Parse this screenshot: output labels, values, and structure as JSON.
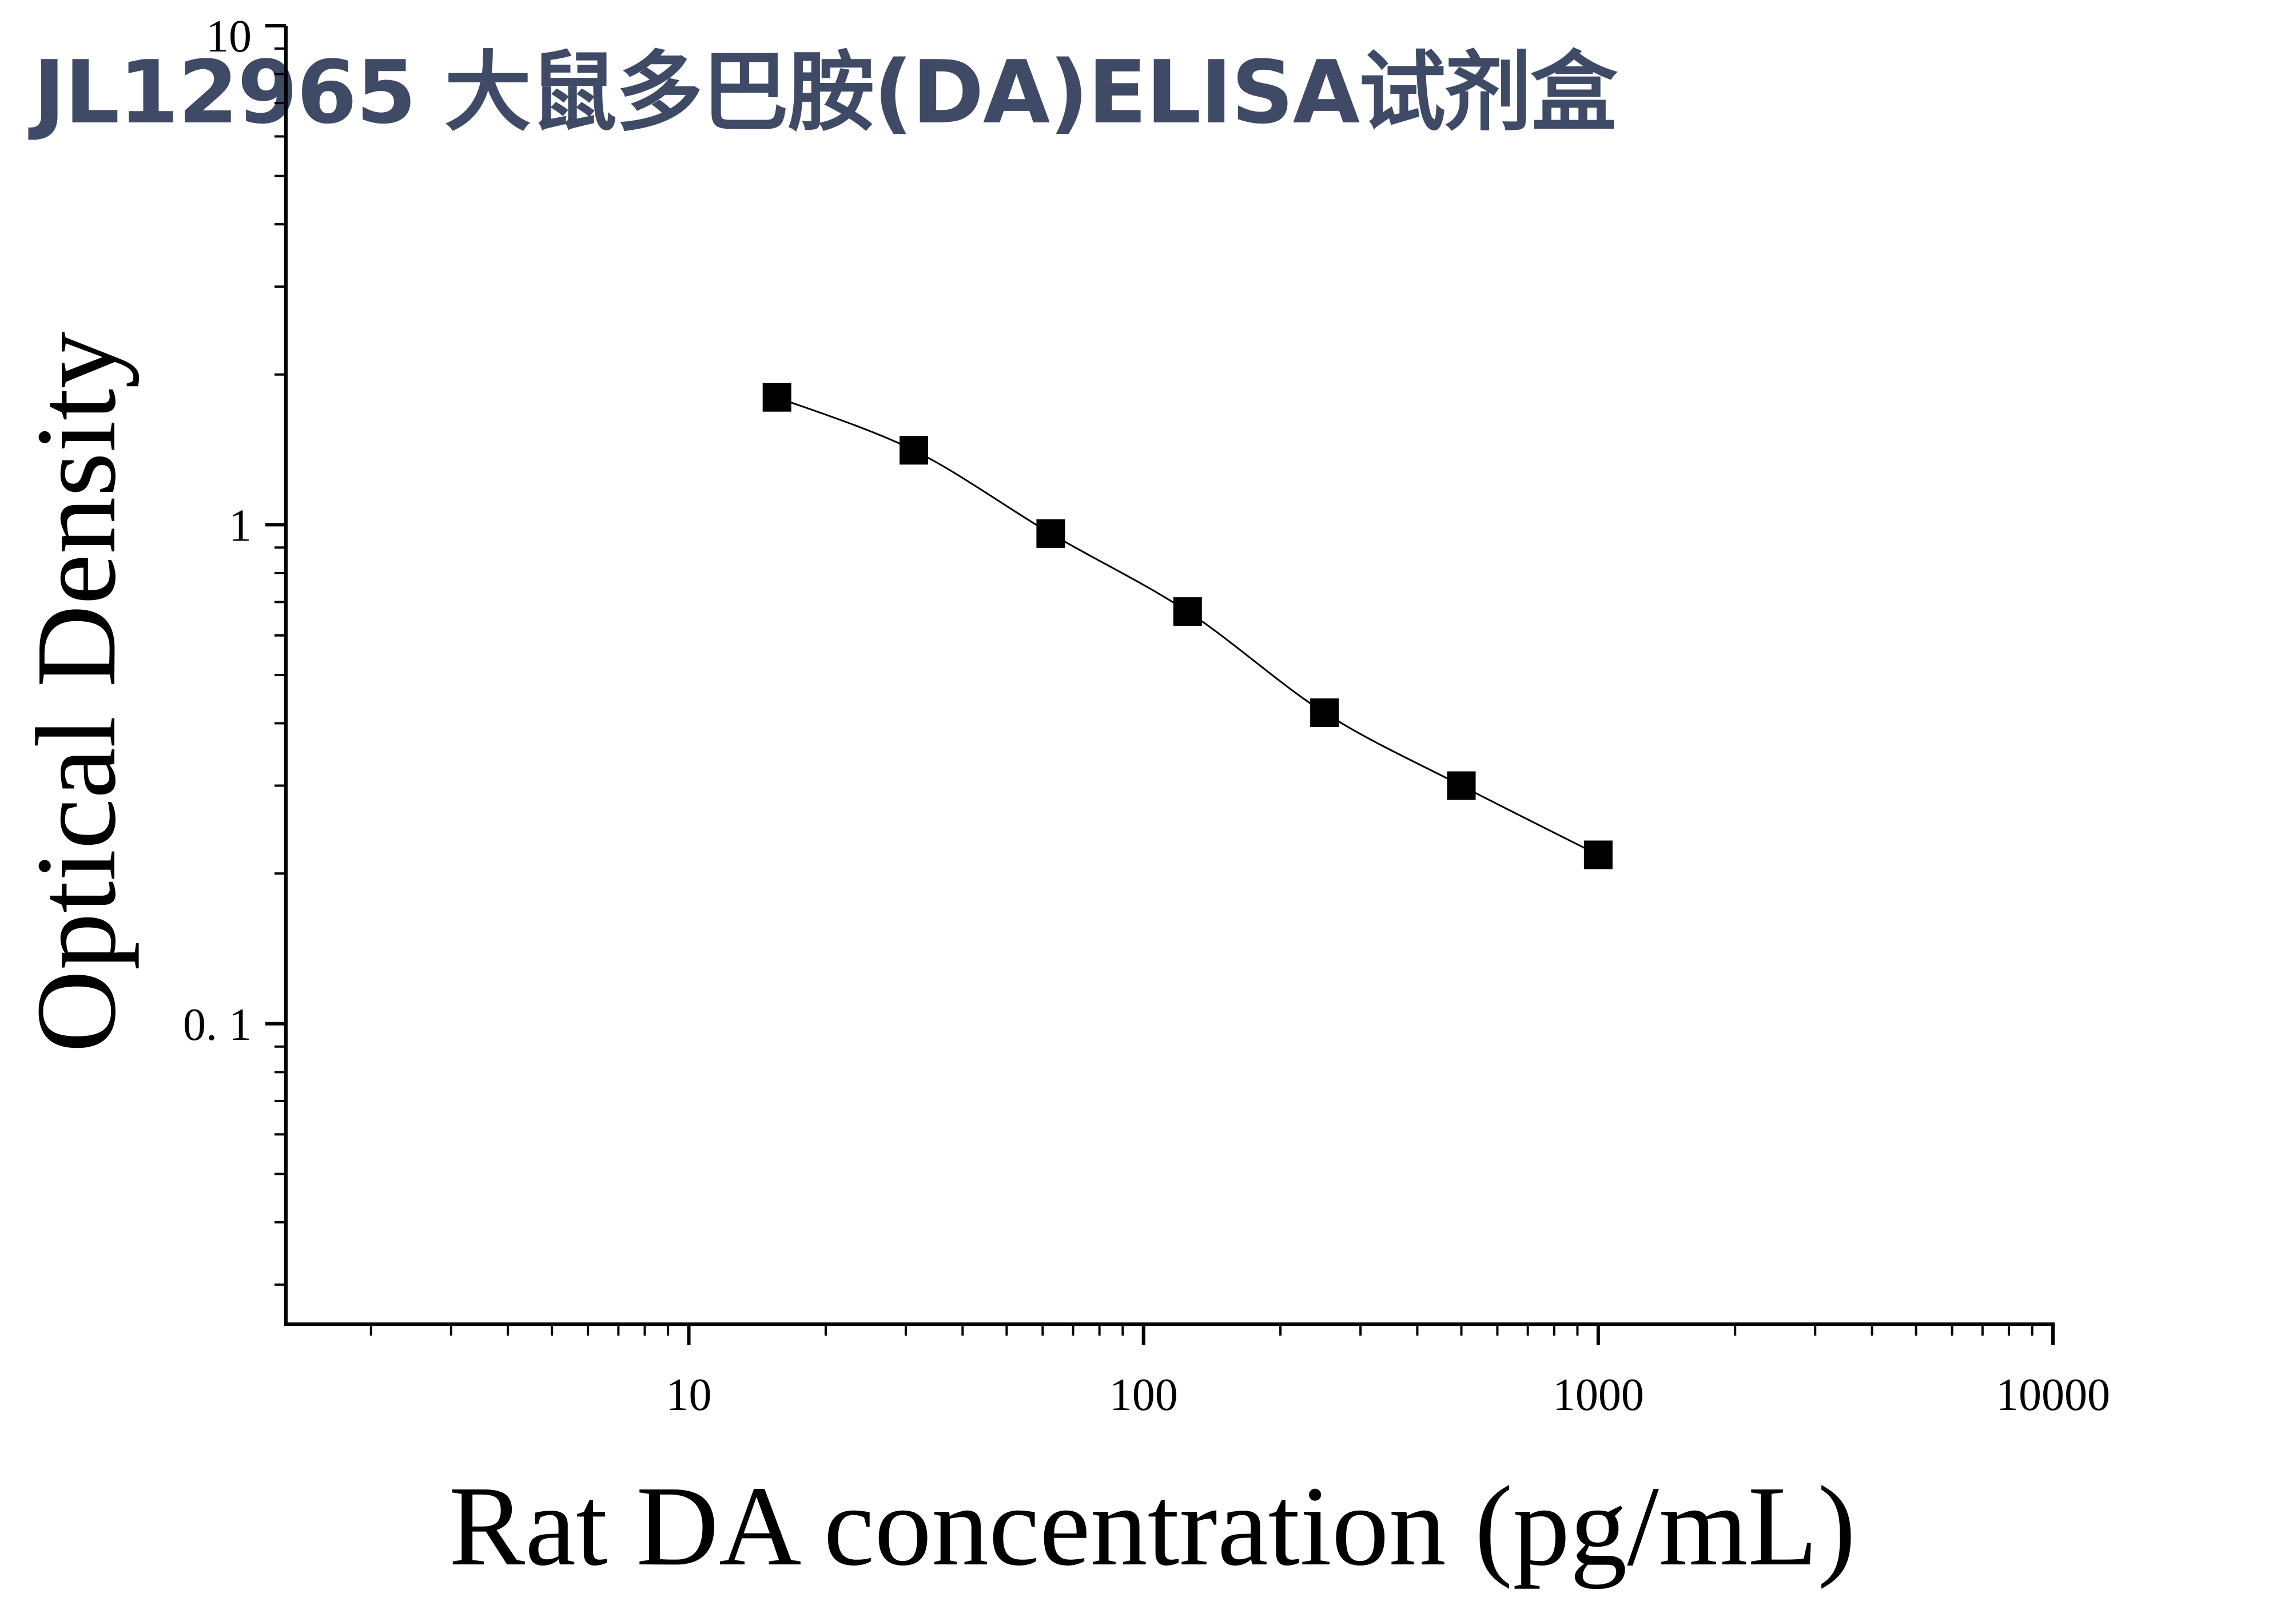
{
  "chart_data": {
    "type": "scatter",
    "title": "JL12965 大鼠多巴胺(DA)ELISA试剂盒",
    "xlabel": "Rat DA concentration (pg/mL)",
    "ylabel": "Optical Density",
    "xscale": "log",
    "yscale": "log",
    "xlim": [
      1.3,
      10000
    ],
    "ylim": [
      0.025,
      10
    ],
    "x_ticks": [
      {
        "value": 10,
        "label": "10"
      },
      {
        "value": 100,
        "label": "100"
      },
      {
        "value": 1000,
        "label": "1000"
      },
      {
        "value": 10000,
        "label": "10000"
      }
    ],
    "y_ticks": [
      {
        "value": 0.1,
        "label": "0. 1"
      },
      {
        "value": 1,
        "label": "1"
      },
      {
        "value": 10,
        "label": "10"
      }
    ],
    "grid": false,
    "legend": "none",
    "marker": "square",
    "series": [
      {
        "x": [
          15.625,
          31.25,
          62.5,
          125,
          250,
          500,
          1000
        ],
        "y": [
          1.8,
          1.41,
          0.96,
          0.67,
          0.42,
          0.3,
          0.218
        ]
      }
    ],
    "fit_curve": true,
    "colors": {
      "marker": "#000000",
      "line": "#000000",
      "title": "#3f4b66"
    }
  }
}
